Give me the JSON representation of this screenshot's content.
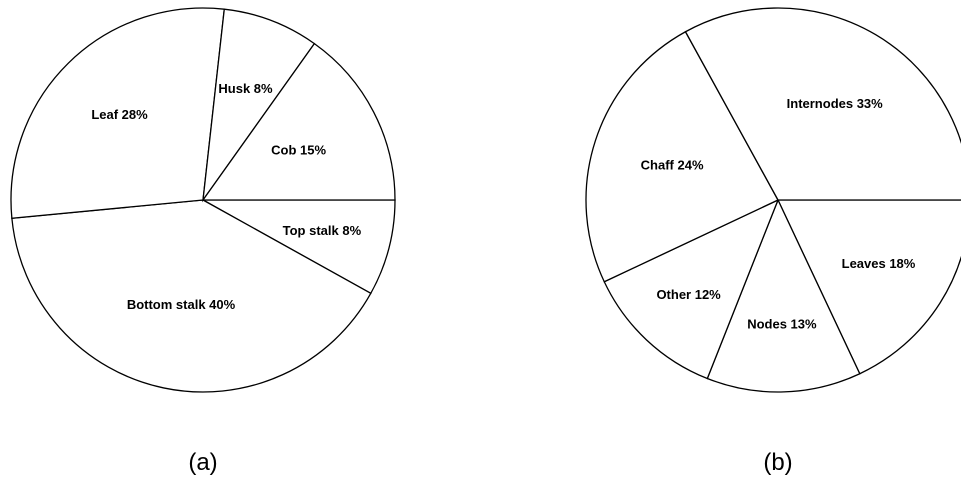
{
  "colors": {
    "background": "#ffffff",
    "stroke": "#000000",
    "slice_fill": "#ffffff"
  },
  "chart_data": [
    {
      "type": "pie",
      "panel_label": "(a)",
      "slices": [
        {
          "label": "Top stalk 8%",
          "value": 8
        },
        {
          "label": "Bottom stalk 40%",
          "value": 40
        },
        {
          "label": "Leaf 28%",
          "value": 28
        },
        {
          "label": "Husk 8%",
          "value": 8
        },
        {
          "label": "Cob 15%",
          "value": 15
        }
      ]
    },
    {
      "type": "pie",
      "panel_label": "(b)",
      "slices": [
        {
          "label": "Leaves 18%",
          "value": 18
        },
        {
          "label": "Nodes 13%",
          "value": 13
        },
        {
          "label": "Other 12%",
          "value": 12
        },
        {
          "label": "Chaff 24%",
          "value": 24
        },
        {
          "label": "Internodes 33%",
          "value": 33
        }
      ]
    }
  ]
}
